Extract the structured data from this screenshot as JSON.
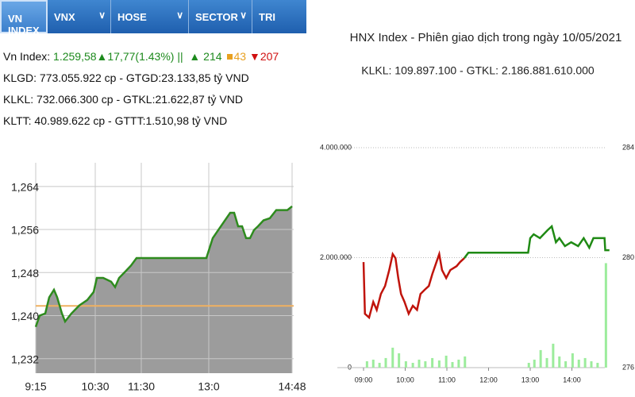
{
  "tabs": [
    "VN INDEX",
    "VNX",
    "HOSE",
    "SECTOR",
    "TRI"
  ],
  "info": {
    "line1": {
      "label": "Vn Index:",
      "index": "1.259,58▲17,77(1.43%) ||",
      "up": "▲ 214",
      "flat": "43",
      "down": "▼207"
    },
    "line2": "KLGD: 773.055.922 cp - GTGD:23.133,85 tỷ VND",
    "line3": "KLKL: 732.066.300 cp - GTKL:21.622,87 tỷ VND",
    "line4": "KLTT: 40.989.622 cp - GTTT:1.510,98 tỷ VND"
  },
  "chart_data": [
    {
      "type": "area",
      "color": "#2e8b1e",
      "fill": "#9c9c9c",
      "x": [
        0,
        5,
        12,
        17,
        23,
        27,
        33,
        37,
        45,
        55,
        65,
        73,
        77,
        85,
        95,
        100,
        105,
        113,
        120,
        127,
        135,
        215,
        223,
        230,
        237,
        245,
        250,
        255,
        260,
        265,
        270,
        275,
        280,
        287,
        295,
        303,
        310,
        317,
        323
      ],
      "values": [
        1237.9,
        1240.0,
        1240.4,
        1243.4,
        1244.8,
        1243.4,
        1240.4,
        1238.9,
        1240.4,
        1241.9,
        1242.9,
        1244.4,
        1247.0,
        1247.0,
        1246.3,
        1245.3,
        1247.0,
        1248.2,
        1249.3,
        1250.7,
        1250.7,
        1250.7,
        1254.4,
        1255.9,
        1257.4,
        1259.1,
        1259.1,
        1256.6,
        1256.6,
        1254.4,
        1254.4,
        1255.9,
        1256.6,
        1257.7,
        1258.1,
        1259.6,
        1259.6,
        1259.6,
        1260.3
      ],
      "reference": 1241.81,
      "reference_color": "#f0b060",
      "xlim": [
        0,
        325
      ],
      "xticks": [
        {
          "value": 0,
          "label": "9:15"
        },
        {
          "value": 75,
          "label": "10:30"
        },
        {
          "value": 133,
          "label": "11:30"
        },
        {
          "value": 218,
          "label": "13:0"
        },
        {
          "value": 323,
          "label": "14:48"
        }
      ],
      "ylim": [
        1229.3,
        1268.4
      ],
      "yticks": [
        {
          "value": 1232,
          "label": "1,232"
        },
        {
          "value": 1240,
          "label": "1,240"
        },
        {
          "value": 1248,
          "label": "1,248"
        },
        {
          "value": 1256,
          "label": "1,256"
        },
        {
          "value": 1264,
          "label": "1,264"
        }
      ],
      "grid": true
    },
    {
      "type": "line",
      "title": "HNX Index - Phiên giao dịch trong ngày 10/05/2021",
      "subtitle": "KLKL: 109.897.100 - GTKL: 2.186.881.610.000",
      "series": [
        {
          "type": "bar",
          "axis": "y",
          "color": "#9cec9c",
          "x": [
            5,
            14,
            23,
            32,
            42,
            51,
            61,
            71,
            80,
            89,
            99,
            109,
            119,
            128,
            137,
            146,
            238,
            246,
            255,
            264,
            273,
            282,
            291,
            301,
            310,
            319,
            328,
            337,
            349
          ],
          "values": [
            116000,
            145000,
            87000,
            174000,
            362500,
            261000,
            116000,
            87000,
            145000,
            116000,
            174000,
            130500,
            217500,
            101500,
            145000,
            203000,
            87000,
            145000,
            319000,
            174000,
            435000,
            203000,
            116000,
            261000,
            145000,
            174000,
            116000,
            87000,
            1900000
          ]
        },
        {
          "type": "line",
          "axis": "y2",
          "color": "#c0140c",
          "x": [
            0,
            2,
            8,
            14,
            19,
            25,
            31,
            37,
            42,
            46,
            50,
            54,
            59,
            65,
            71,
            77,
            82,
            88,
            94,
            99,
            105,
            109,
            113,
            119,
            125,
            134,
            139,
            145
          ],
          "values": [
            279.84,
            277.96,
            277.82,
            278.39,
            278.1,
            278.68,
            278.97,
            279.55,
            280.13,
            279.98,
            279.26,
            278.68,
            278.39,
            277.96,
            278.25,
            278.1,
            278.68,
            278.83,
            278.97,
            279.4,
            279.84,
            280.13,
            279.55,
            279.26,
            279.55,
            279.69,
            279.84,
            279.98
          ]
        },
        {
          "type": "line",
          "axis": "y2",
          "color": "#1f8a14",
          "x": [
            145,
            151,
            162,
            237,
            240,
            245,
            254,
            265,
            271,
            277,
            282,
            290,
            299,
            309,
            317,
            325,
            331,
            339,
            347,
            348,
            354
          ],
          "values": [
            279.98,
            280.18,
            280.18,
            280.18,
            280.71,
            280.85,
            280.71,
            281.0,
            281.14,
            280.56,
            280.71,
            280.42,
            280.56,
            280.42,
            280.71,
            280.36,
            280.71,
            280.71,
            280.71,
            280.27,
            280.27
          ]
        }
      ],
      "xlim": [
        0,
        360
      ],
      "xticks": [
        {
          "value": 0,
          "label": "09:00"
        },
        {
          "value": 60,
          "label": "10:00"
        },
        {
          "value": 120,
          "label": "11:00"
        },
        {
          "value": 180,
          "label": "12:00"
        },
        {
          "value": 240,
          "label": "13:00"
        },
        {
          "value": 300,
          "label": "14:00"
        }
      ],
      "ylim": [
        0,
        4000000
      ],
      "yticks": [
        0,
        {
          "value": 2000000,
          "label": "2.000.000"
        },
        {
          "value": 4000000,
          "label": "4.000.000"
        }
      ],
      "y2lim": [
        276,
        284
      ],
      "y2ticks": [
        276,
        280,
        284
      ],
      "grid": true
    }
  ]
}
